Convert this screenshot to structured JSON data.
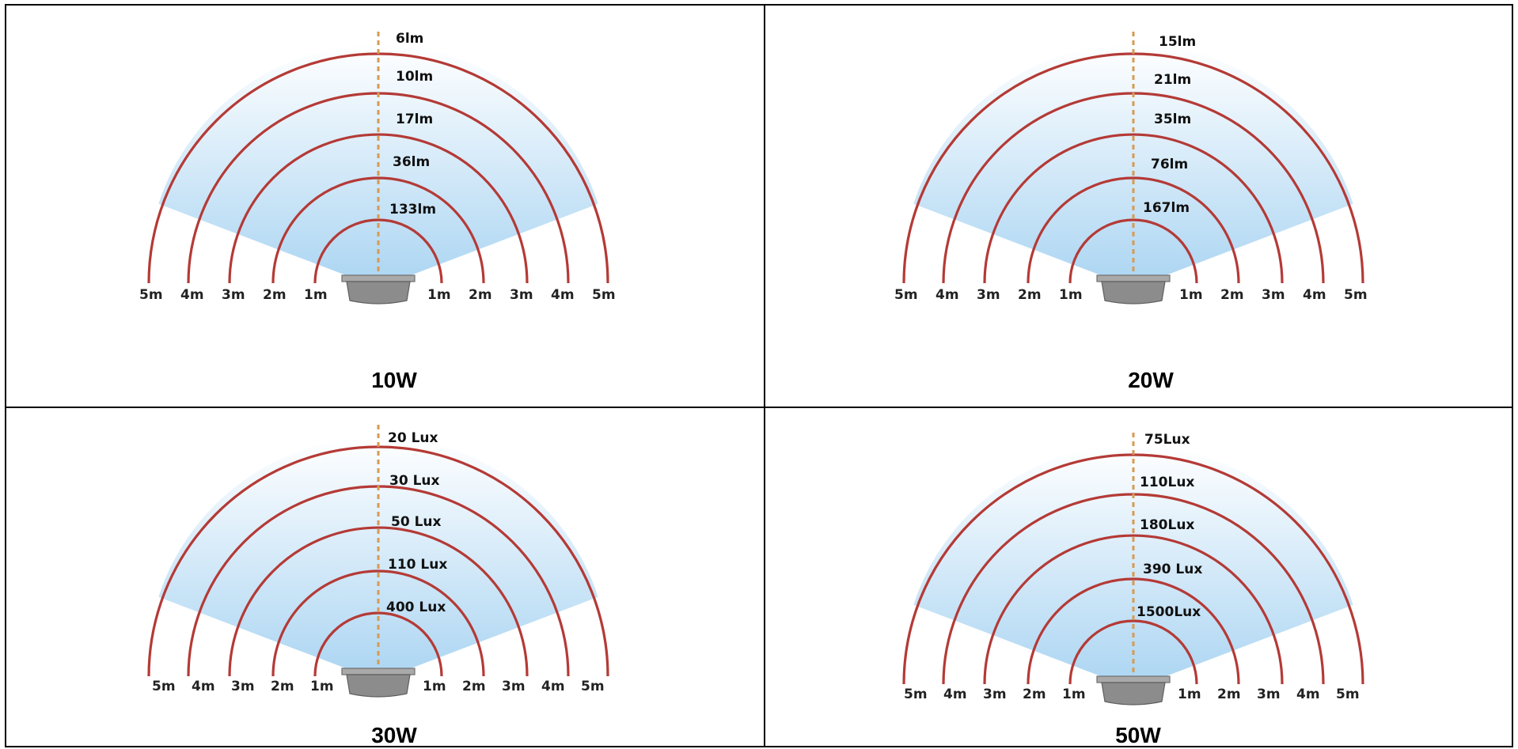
{
  "panels": [
    {
      "id": "p10",
      "wattage": "10W",
      "levels": [
        "6lm",
        "10lm",
        "17lm",
        "36lm",
        "133lm"
      ],
      "distances_left": [
        "5m",
        "4m",
        "3m",
        "2m",
        "1m"
      ],
      "distances_right": [
        "1m",
        "2m",
        "3m",
        "4m",
        "5m"
      ]
    },
    {
      "id": "p20",
      "wattage": "20W",
      "levels": [
        "15lm",
        "21lm",
        "35lm",
        "76lm",
        "167lm"
      ],
      "distances_left": [
        "5m",
        "4m",
        "3m",
        "2m",
        "1m"
      ],
      "distances_right": [
        "1m",
        "2m",
        "3m",
        "4m",
        "5m"
      ]
    },
    {
      "id": "p30",
      "wattage": "30W",
      "levels": [
        "20 Lux",
        "30 Lux",
        "50 Lux",
        "110 Lux",
        "400 Lux"
      ],
      "distances_left": [
        "5m",
        "4m",
        "3m",
        "2m",
        "1m"
      ],
      "distances_right": [
        "1m",
        "2m",
        "3m",
        "4m",
        "5m"
      ]
    },
    {
      "id": "p50",
      "wattage": "50W",
      "levels": [
        "75Lux",
        "110Lux",
        "180Lux",
        "390 Lux",
        "1500Lux"
      ],
      "distances_left": [
        "5m",
        "4m",
        "3m",
        "2m",
        "1m"
      ],
      "distances_right": [
        "1m",
        "2m",
        "3m",
        "4m",
        "5m"
      ]
    }
  ],
  "colors": {
    "border": "#000000",
    "ring": "#b43a36",
    "axis": "#d79a52",
    "beam_top": "#ffffff",
    "beam_bottom": "#a9d4f2",
    "fixture": "#8c8c8c"
  }
}
